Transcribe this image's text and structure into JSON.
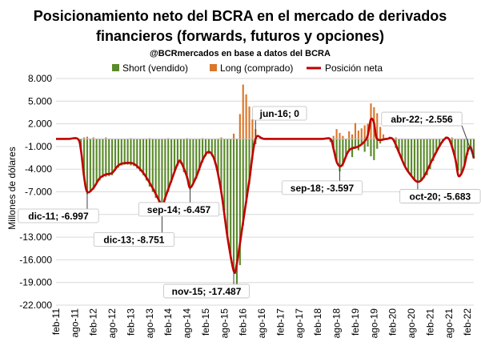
{
  "chart_data": {
    "type": "bar+line",
    "title": "Posicionamiento neto del BCRA en el mercado de derivados financieros (forwards, futuros y opciones)",
    "subtitle": "@BCRmercados en base a datos del BCRA",
    "ylabel": "Millones de dólares",
    "xlabel": "",
    "ylim": [
      -22000,
      8000
    ],
    "y_ticks": [
      "8.000",
      "5.000",
      "2.000",
      "-1.000",
      "-4.000",
      "-7.000",
      "-10.000",
      "-13.000",
      "-16.000",
      "-19.000",
      "-22.000"
    ],
    "y_tick_values": [
      8000,
      5000,
      2000,
      -1000,
      -4000,
      -7000,
      -10000,
      -13000,
      -16000,
      -19000,
      -22000
    ],
    "x_ticks": [
      "feb-11",
      "ago-11",
      "feb-12",
      "ago-12",
      "feb-13",
      "ago-13",
      "feb-14",
      "ago-14",
      "feb-15",
      "ago-15",
      "feb-16",
      "ago-16",
      "feb-17",
      "ago-17",
      "feb-18",
      "ago-18",
      "feb-19",
      "ago-19",
      "feb-20",
      "ago-20",
      "feb-21",
      "ago-21",
      "feb-22"
    ],
    "x_start": "2011-02",
    "x_end": "2022-04",
    "grid": true,
    "legend_position": "top",
    "legend": [
      {
        "name": "Short (vendido)",
        "color": "#5b8a2b",
        "kind": "bar"
      },
      {
        "name": "Long (comprado)",
        "color": "#d9772b",
        "kind": "bar"
      },
      {
        "name": "Posición neta",
        "color": "#c00000",
        "kind": "line"
      }
    ],
    "series": [
      {
        "name": "Posición neta",
        "points": [
          [
            "2011-02",
            0
          ],
          [
            "2011-06",
            0
          ],
          [
            "2011-09",
            0
          ],
          [
            "2011-10",
            -1500
          ],
          [
            "2011-11",
            -5000
          ],
          [
            "2011-12",
            -6997
          ],
          [
            "2012-02",
            -6500
          ],
          [
            "2012-04",
            -5200
          ],
          [
            "2012-06",
            -4700
          ],
          [
            "2012-08",
            -4500
          ],
          [
            "2012-10",
            -3500
          ],
          [
            "2012-12",
            -3200
          ],
          [
            "2013-03",
            -3300
          ],
          [
            "2013-06",
            -4500
          ],
          [
            "2013-09",
            -6500
          ],
          [
            "2013-12",
            -8751
          ],
          [
            "2014-01",
            -7800
          ],
          [
            "2014-03",
            -5500
          ],
          [
            "2014-05",
            -3300
          ],
          [
            "2014-06",
            -3000
          ],
          [
            "2014-08",
            -5000
          ],
          [
            "2014-09",
            -6457
          ],
          [
            "2014-11",
            -5000
          ],
          [
            "2015-01",
            -2800
          ],
          [
            "2015-03",
            -1700
          ],
          [
            "2015-05",
            -3000
          ],
          [
            "2015-07",
            -7000
          ],
          [
            "2015-09",
            -13000
          ],
          [
            "2015-11",
            -17487
          ],
          [
            "2015-12",
            -16500
          ],
          [
            "2016-02",
            -11000
          ],
          [
            "2016-04",
            -5500
          ],
          [
            "2016-06",
            0
          ],
          [
            "2016-09",
            0
          ],
          [
            "2017-06",
            0
          ],
          [
            "2018-03",
            0
          ],
          [
            "2018-06",
            0
          ],
          [
            "2018-07",
            -1300
          ],
          [
            "2018-08",
            -3000
          ],
          [
            "2018-09",
            -3597
          ],
          [
            "2018-10",
            -3300
          ],
          [
            "2018-12",
            -1500
          ],
          [
            "2019-03",
            -1000
          ],
          [
            "2019-05",
            -300
          ],
          [
            "2019-06",
            500
          ],
          [
            "2019-07",
            2600
          ],
          [
            "2019-08",
            2100
          ],
          [
            "2019-09",
            0
          ],
          [
            "2019-12",
            0
          ],
          [
            "2020-02",
            0
          ],
          [
            "2020-04",
            -1800
          ],
          [
            "2020-06",
            -3700
          ],
          [
            "2020-08",
            -4900
          ],
          [
            "2020-10",
            -5683
          ],
          [
            "2020-12",
            -5000
          ],
          [
            "2021-03",
            -2500
          ],
          [
            "2021-06",
            -300
          ],
          [
            "2021-08",
            0
          ],
          [
            "2021-10",
            -2500
          ],
          [
            "2021-11",
            -4800
          ],
          [
            "2021-12",
            -4600
          ],
          [
            "2022-01",
            -3500
          ],
          [
            "2022-02",
            -1700
          ],
          [
            "2022-03",
            -1100
          ],
          [
            "2022-04",
            -2556
          ]
        ]
      },
      {
        "name": "Short (vendido)",
        "points": [
          [
            "2011-10",
            -1500
          ],
          [
            "2011-11",
            -5300
          ],
          [
            "2011-12",
            -7300
          ],
          [
            "2012-01",
            -7000
          ],
          [
            "2012-02",
            -6700
          ],
          [
            "2012-03",
            -5800
          ],
          [
            "2012-04",
            -5500
          ],
          [
            "2012-05",
            -5100
          ],
          [
            "2012-06",
            -5000
          ],
          [
            "2012-07",
            -4900
          ],
          [
            "2012-08",
            -4800
          ],
          [
            "2012-09",
            -4200
          ],
          [
            "2012-10",
            -3800
          ],
          [
            "2012-11",
            -3500
          ],
          [
            "2012-12",
            -3400
          ],
          [
            "2013-01",
            -3400
          ],
          [
            "2013-02",
            -3500
          ],
          [
            "2013-03",
            -3600
          ],
          [
            "2013-04",
            -3900
          ],
          [
            "2013-05",
            -4300
          ],
          [
            "2013-06",
            -4800
          ],
          [
            "2013-07",
            -5500
          ],
          [
            "2013-08",
            -6300
          ],
          [
            "2013-09",
            -7000
          ],
          [
            "2013-10",
            -7800
          ],
          [
            "2013-11",
            -8600
          ],
          [
            "2013-12",
            -9000
          ],
          [
            "2014-01",
            -8100
          ],
          [
            "2014-02",
            -7000
          ],
          [
            "2014-03",
            -5800
          ],
          [
            "2014-04",
            -4500
          ],
          [
            "2014-05",
            -3600
          ],
          [
            "2014-06",
            -3300
          ],
          [
            "2014-07",
            -4400
          ],
          [
            "2014-08",
            -5300
          ],
          [
            "2014-09",
            -6700
          ],
          [
            "2014-10",
            -6000
          ],
          [
            "2014-11",
            -5300
          ],
          [
            "2014-12",
            -4200
          ],
          [
            "2015-01",
            -3100
          ],
          [
            "2015-02",
            -2300
          ],
          [
            "2015-03",
            -2000
          ],
          [
            "2015-04",
            -2300
          ],
          [
            "2015-05",
            -3300
          ],
          [
            "2015-06",
            -5000
          ],
          [
            "2015-07",
            -7300
          ],
          [
            "2015-08",
            -9500
          ],
          [
            "2015-09",
            -13200
          ],
          [
            "2015-10",
            -15800
          ],
          [
            "2015-11",
            -17600
          ],
          [
            "2015-12",
            -20600
          ],
          [
            "2016-01",
            -16700
          ],
          [
            "2016-02",
            -11500
          ],
          [
            "2016-03",
            -8500
          ],
          [
            "2016-04",
            -6000
          ],
          [
            "2016-05",
            -2700
          ],
          [
            "2016-06",
            -700
          ],
          [
            "2018-06",
            -400
          ],
          [
            "2018-07",
            -1400
          ],
          [
            "2018-08",
            -3000
          ],
          [
            "2018-09",
            -4300
          ],
          [
            "2018-10",
            -3600
          ],
          [
            "2018-11",
            -2400
          ],
          [
            "2018-12",
            -1700
          ],
          [
            "2019-01",
            -2400
          ],
          [
            "2019-02",
            -1300
          ],
          [
            "2019-03",
            -1500
          ],
          [
            "2019-04",
            -800
          ],
          [
            "2019-05",
            -1700
          ],
          [
            "2019-06",
            -1000
          ],
          [
            "2019-07",
            -2300
          ],
          [
            "2019-08",
            -2800
          ],
          [
            "2019-09",
            -1300
          ],
          [
            "2019-10",
            -600
          ],
          [
            "2020-03",
            -1200
          ],
          [
            "2020-04",
            -1900
          ],
          [
            "2020-05",
            -2900
          ],
          [
            "2020-06",
            -3700
          ],
          [
            "2020-07",
            -4300
          ],
          [
            "2020-08",
            -4900
          ],
          [
            "2020-09",
            -5300
          ],
          [
            "2020-10",
            -5700
          ],
          [
            "2020-11",
            -5400
          ],
          [
            "2020-12",
            -5200
          ],
          [
            "2021-01",
            -4800
          ],
          [
            "2021-02",
            -4000
          ],
          [
            "2021-03",
            -2900
          ],
          [
            "2021-04",
            -1800
          ],
          [
            "2021-05",
            -1100
          ],
          [
            "2021-06",
            -500
          ],
          [
            "2021-09",
            -1100
          ],
          [
            "2021-10",
            -2600
          ],
          [
            "2021-11",
            -4200
          ],
          [
            "2021-12",
            -4800
          ],
          [
            "2022-01",
            -3600
          ],
          [
            "2022-02",
            -2100
          ],
          [
            "2022-03",
            -1200
          ],
          [
            "2022-04",
            -2600
          ]
        ]
      },
      {
        "name": "Long (comprado)",
        "points": [
          [
            "2011-11",
            200
          ],
          [
            "2011-12",
            300
          ],
          [
            "2012-02",
            200
          ],
          [
            "2012-06",
            200
          ],
          [
            "2013-02",
            100
          ],
          [
            "2013-08",
            100
          ],
          [
            "2014-02",
            100
          ],
          [
            "2014-08",
            100
          ],
          [
            "2015-01",
            100
          ],
          [
            "2015-07",
            200
          ],
          [
            "2015-11",
            700
          ],
          [
            "2016-01",
            3300
          ],
          [
            "2016-02",
            7200
          ],
          [
            "2016-03",
            5900
          ],
          [
            "2016-04",
            4300
          ],
          [
            "2016-05",
            2600
          ],
          [
            "2016-06",
            1300
          ],
          [
            "2018-07",
            400
          ],
          [
            "2018-08",
            1300
          ],
          [
            "2018-09",
            800
          ],
          [
            "2018-10",
            400
          ],
          [
            "2018-12",
            1000
          ],
          [
            "2019-01",
            600
          ],
          [
            "2019-02",
            2100
          ],
          [
            "2019-03",
            1100
          ],
          [
            "2019-04",
            1400
          ],
          [
            "2019-05",
            1800
          ],
          [
            "2019-06",
            2000
          ],
          [
            "2019-07",
            4700
          ],
          [
            "2019-08",
            4200
          ],
          [
            "2019-09",
            3400
          ],
          [
            "2019-10",
            1600
          ],
          [
            "2019-11",
            600
          ],
          [
            "2020-01",
            300
          ],
          [
            "2020-03",
            200
          ],
          [
            "2021-07",
            300
          ],
          [
            "2021-09",
            200
          ]
        ]
      }
    ],
    "annotations": [
      {
        "text": "dic-11; -6.997",
        "at": [
          "2011-12",
          -6997
        ]
      },
      {
        "text": "dic-13; -8.751",
        "at": [
          "2013-12",
          -8751
        ]
      },
      {
        "text": "sep-14; -6.457",
        "at": [
          "2014-09",
          -6457
        ]
      },
      {
        "text": "nov-15; -17.487",
        "at": [
          "2015-11",
          -17487
        ]
      },
      {
        "text": "jun-16; 0",
        "at": [
          "2016-06",
          0
        ]
      },
      {
        "text": "sep-18; -3.597",
        "at": [
          "2018-09",
          -3597
        ]
      },
      {
        "text": "oct-20; -5.683",
        "at": [
          "2020-10",
          -5683
        ]
      },
      {
        "text": "abr-22; -2.556",
        "at": [
          "2022-04",
          -2556
        ]
      }
    ]
  }
}
